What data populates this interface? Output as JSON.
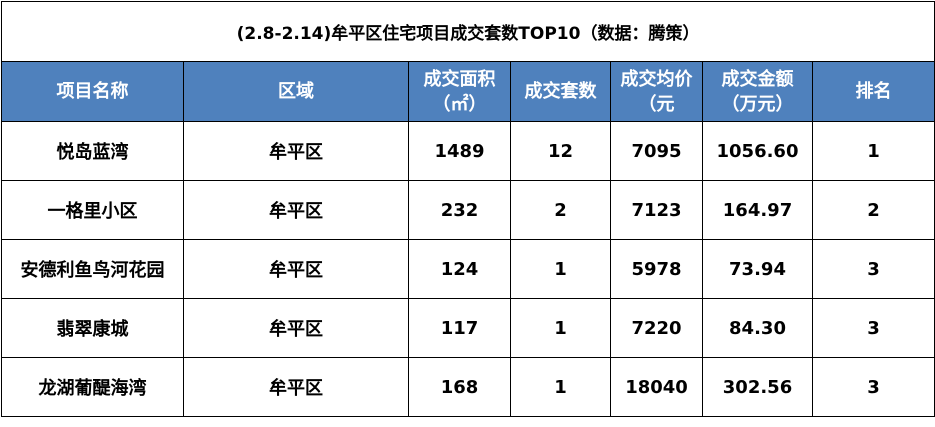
{
  "table": {
    "title": "(2.8-2.14)牟平区住宅项目成交套数TOP10（数据：腾策）",
    "header": [
      "项目名称",
      "区域",
      "成交面积\n（㎡）",
      "成交套数",
      "成交均价\n（元",
      "成交金额\n（万元）",
      "排名"
    ],
    "rows": [
      [
        "悦岛蓝湾",
        "牟平区",
        "1489",
        "12",
        "7095",
        "1056.60",
        "1"
      ],
      [
        "一格里小区",
        "牟平区",
        "232",
        "2",
        "7123",
        "164.97",
        "2"
      ],
      [
        "安德利鱼鸟河花园",
        "牟平区",
        "124",
        "1",
        "5978",
        "73.94",
        "3"
      ],
      [
        "翡翠康城",
        "牟平区",
        "117",
        "1",
        "7220",
        "84.30",
        "3"
      ],
      [
        "龙湖葡醍海湾",
        "牟平区",
        "168",
        "1",
        "18040",
        "302.56",
        "3"
      ]
    ]
  }
}
